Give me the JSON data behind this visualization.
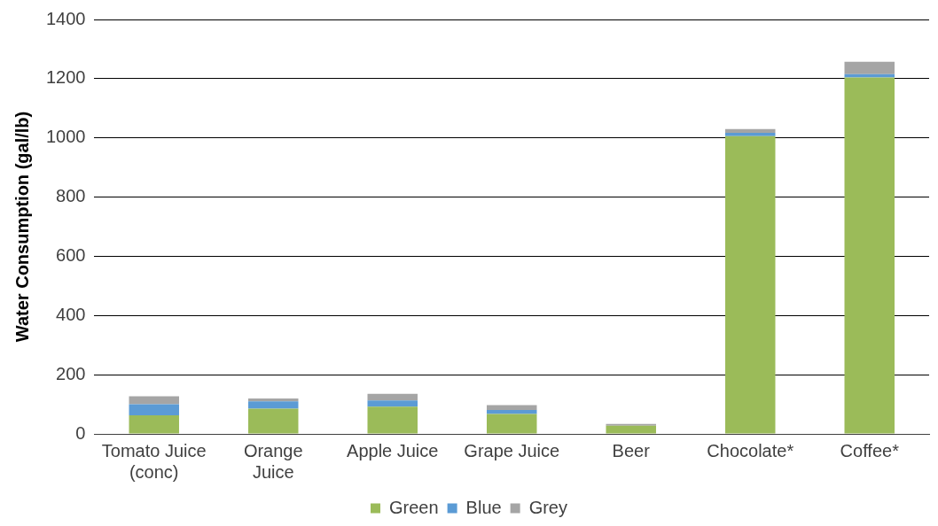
{
  "chart_data": {
    "type": "bar",
    "stacked": true,
    "ylabel": "Water Consumption (gal/lb)",
    "categories": [
      "Tomato Juice (conc)",
      "Orange Juice",
      "Apple Juice",
      "Grape Juice",
      "Beer",
      "Chocolate*",
      "Coffee*"
    ],
    "series": [
      {
        "name": "Green",
        "color": "#9bbb59",
        "values": [
          63,
          85,
          92,
          67,
          28,
          1006,
          1204
        ]
      },
      {
        "name": "Blue",
        "color": "#5b9bd5",
        "values": [
          37,
          25,
          21,
          14,
          0,
          11,
          11
        ]
      },
      {
        "name": "Grey",
        "color": "#a5a5a5",
        "values": [
          27,
          10,
          22,
          16,
          6,
          13,
          42
        ]
      }
    ],
    "ylim": [
      0,
      1400
    ],
    "yticks": [
      0,
      200,
      400,
      600,
      800,
      1000,
      1200,
      1400
    ],
    "grid": "y",
    "legend": "bottom"
  }
}
